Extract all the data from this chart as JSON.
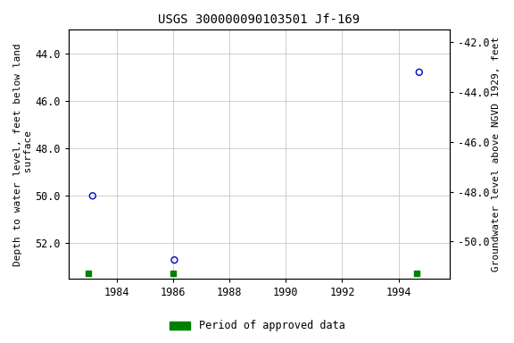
{
  "title": "USGS 300000090103501 Jf-169",
  "ylabel_left": "Depth to water level, feet below land\n surface",
  "ylabel_right": "Groundwater level above NGVD 1929, feet",
  "ylim_left_top": 43.0,
  "ylim_left_bottom": 53.5,
  "ylim_right_top": -41.5,
  "ylim_right_bottom": -51.5,
  "xlim": [
    1982.3,
    1995.8
  ],
  "xticks": [
    1984,
    1986,
    1988,
    1990,
    1992,
    1994
  ],
  "yticks_left": [
    44.0,
    46.0,
    48.0,
    50.0,
    52.0
  ],
  "yticks_right": [
    -42.0,
    -44.0,
    -46.0,
    -48.0,
    -50.0
  ],
  "scatter_x": [
    1983.15,
    1986.05,
    1994.73
  ],
  "scatter_y": [
    50.0,
    52.7,
    44.8
  ],
  "scatter_color": "#0000cc",
  "scatter_facecolor": "none",
  "scatter_size": 25,
  "scatter_linewidth": 1.0,
  "green_x": [
    1983.0,
    1986.0,
    1994.65
  ],
  "green_y": [
    53.25,
    53.25,
    53.25
  ],
  "green_color": "#008000",
  "green_size": 18,
  "background_color": "#ffffff",
  "grid_color": "#c8c8c8",
  "title_fontsize": 10,
  "axis_label_fontsize": 8,
  "tick_fontsize": 8.5,
  "legend_label": "Period of approved data",
  "legend_color": "#008000"
}
